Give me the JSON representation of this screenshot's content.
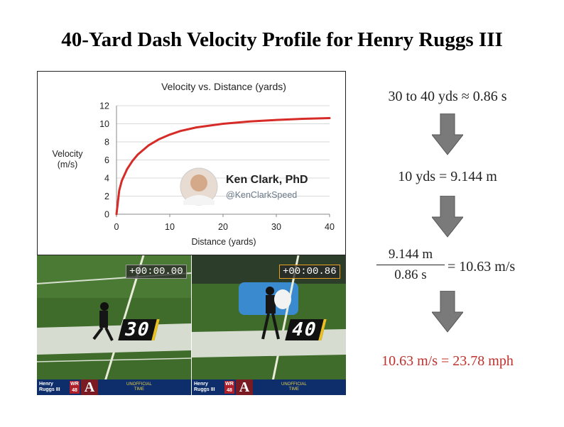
{
  "title": "40-Yard Dash Velocity Profile for Henry Ruggs III",
  "chart_data": {
    "type": "line",
    "title": "Velocity vs. Distance (yards)",
    "xlabel": "Distance (yards)",
    "ylabel": "Velocity (m/s)",
    "xlim": [
      0,
      40
    ],
    "ylim": [
      0,
      12
    ],
    "xticks": [
      0,
      10,
      20,
      30,
      40
    ],
    "yticks": [
      0,
      2,
      4,
      6,
      8,
      10,
      12
    ],
    "grid": "horizontal",
    "line_color": "#d62b26",
    "series": [
      {
        "x": [
          0,
          0.5,
          1,
          2,
          3,
          4,
          5,
          6,
          8,
          10,
          12,
          15,
          20,
          25,
          30,
          35,
          40
        ],
        "y": [
          0,
          2.6,
          3.7,
          5.0,
          5.9,
          6.6,
          7.1,
          7.6,
          8.3,
          8.8,
          9.2,
          9.6,
          10.0,
          10.25,
          10.42,
          10.55,
          10.63
        ]
      }
    ]
  },
  "watermark": {
    "name": "Ken Clark, PhD",
    "handle": "@KenClarkSpeed"
  },
  "videos": [
    {
      "timer": "+00:00.00",
      "yard_marker": "30",
      "player_first": "Henry",
      "player_last": "Ruggs III",
      "position": "WR",
      "number": "48",
      "school_logo": "A",
      "banner_text_1": "UNOFFICIAL",
      "banner_text_2": "TIME"
    },
    {
      "timer": "+00:00.86",
      "yard_marker": "40",
      "player_first": "Henry",
      "player_last": "Ruggs III",
      "position": "WR",
      "number": "48",
      "school_logo": "A",
      "banner_text_1": "UNOFFICIAL",
      "banner_text_2": "TIME"
    }
  ],
  "calc": {
    "step1": "30 to 40 yds ≈ 0.86 s",
    "step2": "10 yds = 9.144 m",
    "frac_num": "9.144 m",
    "frac_den": "0.86 s",
    "frac_result": "= 10.63 m/s",
    "step4": "10.63 m/s = 23.78 mph",
    "result_color": "#c0302b",
    "arrow_color": "#7a7a7a"
  }
}
